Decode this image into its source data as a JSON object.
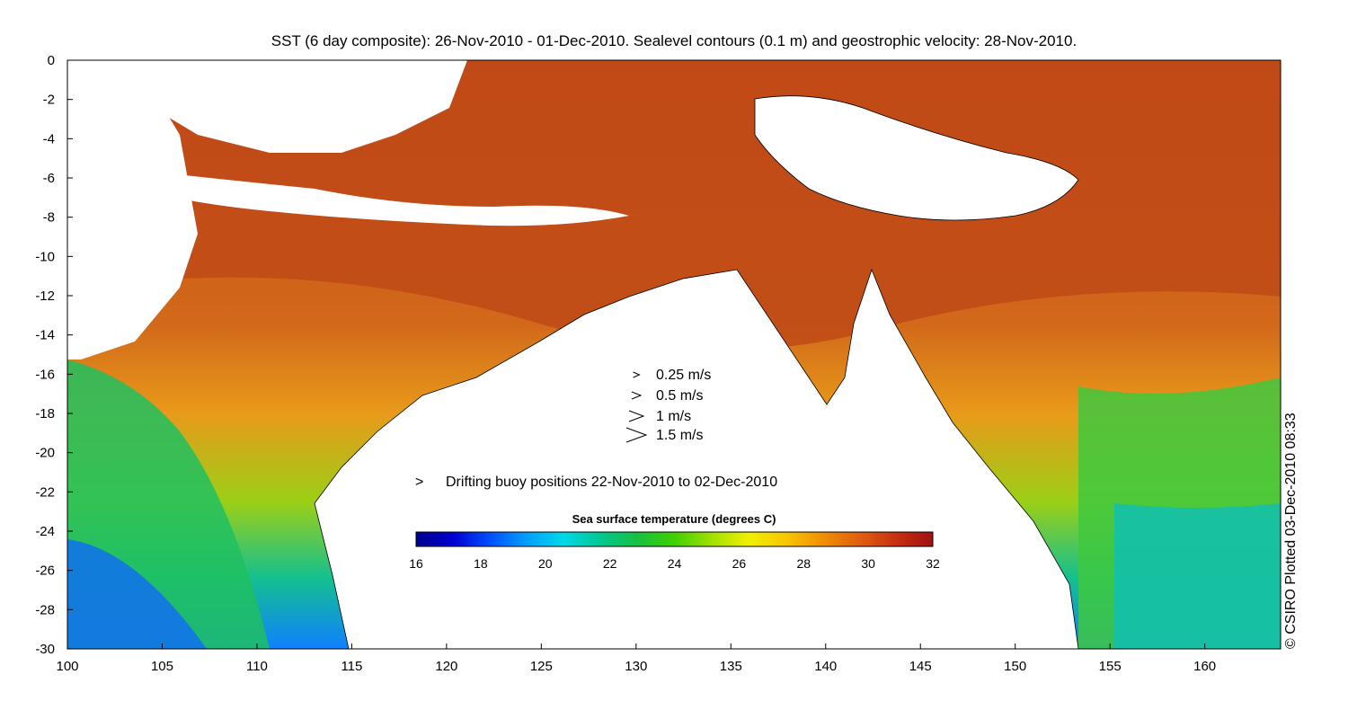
{
  "title": "SST (6 day composite): 26-Nov-2010 - 01-Dec-2010. Sealevel contours (0.1 m) and geostrophic velocity: 28-Nov-2010.",
  "credit": "© CSIRO Plotted 03-Dec-2010 08:33",
  "axes": {
    "x_ticks": [
      "100",
      "105",
      "110",
      "115",
      "120",
      "125",
      "130",
      "135",
      "140",
      "145",
      "150",
      "155",
      "160"
    ],
    "y_ticks": [
      "0",
      "-2",
      "-4",
      "-6",
      "-8",
      "-10",
      "-12",
      "-14",
      "-16",
      "-18",
      "-20",
      "-22",
      "-24",
      "-26",
      "-28",
      "-30"
    ],
    "xlim": [
      100,
      164
    ],
    "ylim": [
      -30,
      0
    ]
  },
  "velocity_legend": [
    {
      "label": "0.25 m/s",
      "speed": 0.25
    },
    {
      "label": "0.5 m/s",
      "speed": 0.5
    },
    {
      "label": "1 m/s",
      "speed": 1
    },
    {
      "label": "1.5 m/s",
      "speed": 1.5
    }
  ],
  "buoy_legend": {
    "label": "Drifting buoy positions 22-Nov-2010 to 02-Dec-2010",
    "color": "#d020d0"
  },
  "colorbar": {
    "title": "Sea surface temperature (degrees C)",
    "ticks": [
      "16",
      "18",
      "20",
      "22",
      "24",
      "26",
      "28",
      "30",
      "32"
    ],
    "range": [
      16,
      32
    ],
    "colors": [
      "#00008c",
      "#0000d0",
      "#0050ff",
      "#00a0ff",
      "#00d8e8",
      "#00c890",
      "#18c040",
      "#40d000",
      "#a0e000",
      "#f0f000",
      "#f8c800",
      "#f09000",
      "#e06010",
      "#c83010",
      "#a01010"
    ]
  },
  "colors": {
    "land": "#ffffff",
    "warm_ocean": "#c0501a",
    "buoy": "#d020d0"
  }
}
